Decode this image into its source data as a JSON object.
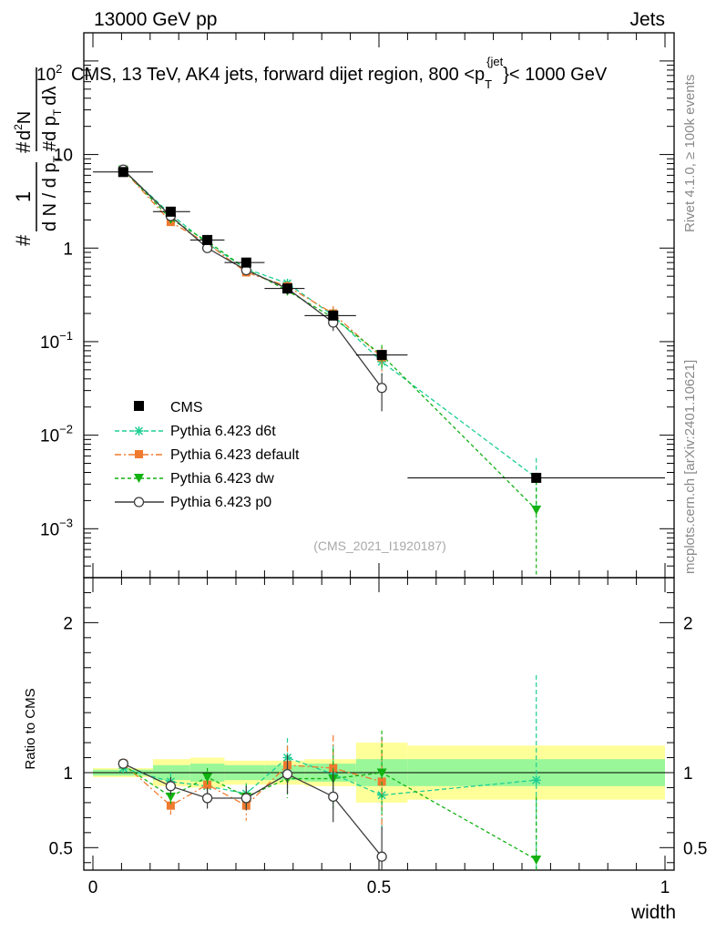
{
  "header": {
    "left": "13000 GeV pp",
    "right": "Jets"
  },
  "chart_data": {
    "type": "line",
    "title": "CMS, 13 TeV, AK4 jets, forward dijet region, 800 <p_T^{jet}< 1000 GeV",
    "title_text": "CMS, 13 TeV, AK4 jets, forward dijet region, 800 <p",
    "title_sub": "T",
    "title_sup": "{jet",
    "title_tail": "}< 1000 GeV",
    "exponent_label": "10",
    "exponent_sup": "2",
    "xlabel": "width",
    "ylabel": "1/dN/dp_T d^2N/dp_T dλ",
    "ylabel_parts": {
      "hash1": "#",
      "one": "1",
      "dn": "d N / d p",
      "sub_t": "T",
      "d2n": "d",
      "d2n_sup": "2",
      "d2n_tail": "N",
      "hash2": "#",
      "hash3": "#",
      "dpt": "d p",
      "dlambda": "dλ"
    },
    "ratio_ylabel": "Ratio to CMS",
    "watermark": "(CMS_2021_I1920187)",
    "side_label_top": "Rivet 4.1.0, ≥ 100k events",
    "side_label_bottom": "mcplots.cern.ch [arXiv:2401.10621]",
    "xlim": [
      0,
      1
    ],
    "ylim": [
      0.0003,
      200
    ],
    "ratio_ylim": [
      0.35,
      2.3
    ],
    "x_ticks": [
      {
        "v": 0,
        "label": "0"
      },
      {
        "v": 0.5,
        "label": "0.5"
      },
      {
        "v": 1,
        "label": "1"
      }
    ],
    "y_ticks": [
      {
        "v": 0.001,
        "base": "10",
        "exp": "−3"
      },
      {
        "v": 0.01,
        "base": "10",
        "exp": "−2"
      },
      {
        "v": 0.1,
        "base": "10",
        "exp": "−1"
      },
      {
        "v": 1,
        "base": "1",
        "exp": ""
      },
      {
        "v": 10,
        "base": "10",
        "exp": ""
      }
    ],
    "ratio_ticks": [
      {
        "v": 0.5,
        "label": "0.5"
      },
      {
        "v": 1,
        "label": "1"
      },
      {
        "v": 2,
        "label": "2"
      }
    ],
    "bins": [
      {
        "lo": 0.0,
        "hi": 0.105,
        "x": 0.053
      },
      {
        "lo": 0.105,
        "hi": 0.17,
        "x": 0.136
      },
      {
        "lo": 0.17,
        "hi": 0.23,
        "x": 0.2
      },
      {
        "lo": 0.23,
        "hi": 0.3,
        "x": 0.268
      },
      {
        "lo": 0.3,
        "hi": 0.37,
        "x": 0.34
      },
      {
        "lo": 0.37,
        "hi": 0.46,
        "x": 0.42
      },
      {
        "lo": 0.46,
        "hi": 0.55,
        "x": 0.505
      },
      {
        "lo": 0.55,
        "hi": 1.0,
        "x": 0.775
      }
    ],
    "data": {
      "name": "CMS",
      "values": [
        6.5,
        2.45,
        1.22,
        0.7,
        0.37,
        0.19,
        0.072,
        0.0035
      ],
      "band_inner": [
        0.02,
        0.05,
        0.06,
        0.05,
        0.05,
        0.06,
        0.09,
        0.09
      ],
      "band_outer": [
        0.03,
        0.09,
        0.1,
        0.08,
        0.08,
        0.09,
        0.2,
        0.18
      ]
    },
    "series": [
      {
        "name": "Pythia 6.423 d6t",
        "color": "#1fcf93",
        "marker": "star",
        "dash": "5,3",
        "values": [
          6.8,
          2.3,
          1.12,
          0.6,
          0.42,
          0.19,
          0.061,
          0.0035
        ],
        "errors": [
          0.2,
          0.15,
          0.08,
          0.05,
          0.05,
          0.04,
          0.018,
          0.0022
        ]
      },
      {
        "name": "Pythia 6.423 default",
        "color": "#f07a2e",
        "marker": "square",
        "dash": "7,3,2,3",
        "values": [
          6.9,
          1.9,
          1.12,
          0.55,
          0.39,
          0.2,
          0.068,
          null
        ],
        "errors": [
          0.2,
          0.12,
          0.08,
          0.06,
          0.05,
          0.04,
          0.02,
          null
        ]
      },
      {
        "name": "Pythia 6.423 dw",
        "color": "#12b212",
        "marker": "triangle-down",
        "dash": "4,3",
        "values": [
          6.9,
          2.05,
          1.18,
          0.6,
          0.35,
          0.18,
          0.072,
          0.0016
        ],
        "errors": [
          0.2,
          0.13,
          0.08,
          0.05,
          0.05,
          0.04,
          0.02,
          0.0016
        ]
      },
      {
        "name": "Pythia 6.423 p0",
        "color": "#3c3c3c",
        "marker": "circle-open",
        "dash": "",
        "values": [
          6.9,
          2.2,
          1.0,
          0.58,
          0.37,
          0.16,
          0.032,
          null
        ],
        "errors": [
          0.2,
          0.13,
          0.08,
          0.05,
          0.05,
          0.03,
          0.014,
          null
        ]
      }
    ],
    "ratios": [
      {
        "name": "Pythia 6.423 d6t",
        "values": [
          1.03,
          0.94,
          0.91,
          0.86,
          1.1,
          0.99,
          0.85,
          0.95
        ],
        "errors": [
          0.03,
          0.06,
          0.06,
          0.07,
          0.13,
          0.2,
          0.24,
          0.7
        ]
      },
      {
        "name": "Pythia 6.423 default",
        "values": [
          1.06,
          0.78,
          0.92,
          0.78,
          1.05,
          1.03,
          0.94,
          null
        ],
        "errors": [
          0.03,
          0.06,
          0.07,
          0.1,
          0.13,
          0.22,
          0.3,
          null
        ]
      },
      {
        "name": "Pythia 6.423 dw",
        "values": [
          1.05,
          0.84,
          0.97,
          0.84,
          0.96,
          0.96,
          1.0,
          0.42
        ],
        "errors": [
          0.03,
          0.06,
          0.06,
          0.08,
          0.13,
          0.2,
          0.28,
          0.42
        ]
      },
      {
        "name": "Pythia 6.423 p0",
        "values": [
          1.06,
          0.91,
          0.83,
          0.83,
          0.99,
          0.84,
          0.44,
          null
        ],
        "errors": [
          0.03,
          0.06,
          0.07,
          0.08,
          0.13,
          0.17,
          0.2,
          null
        ]
      }
    ]
  }
}
